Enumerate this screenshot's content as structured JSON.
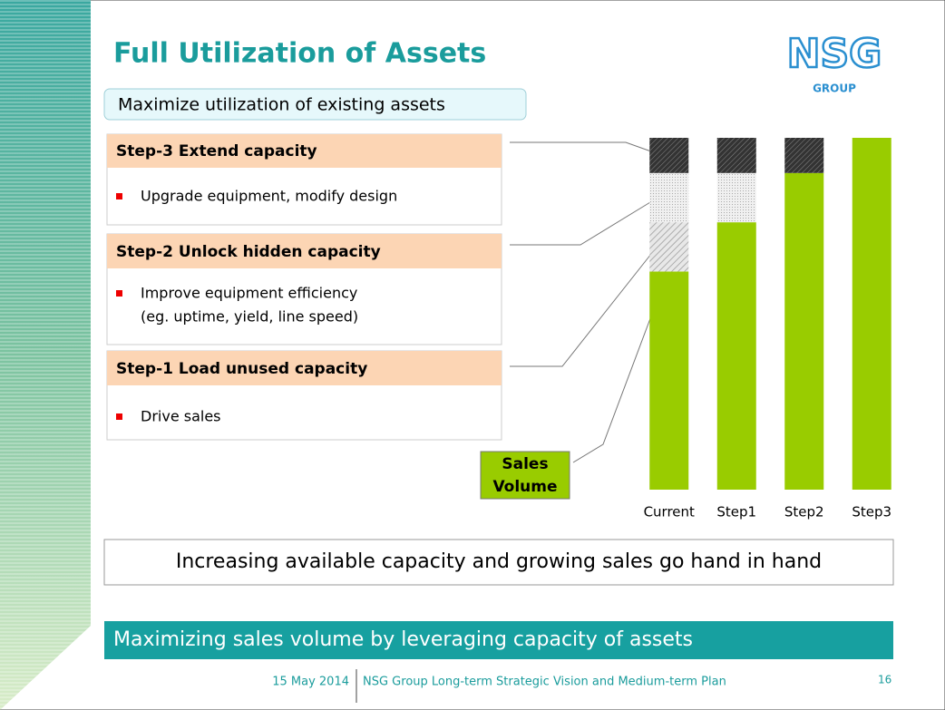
{
  "slide": {
    "title": "Full Utilization of Assets",
    "subtitle": "Maximize utilization of existing assets",
    "logo": {
      "name": "NSG",
      "sub": "GROUP"
    },
    "steps": [
      {
        "header": "Step-3  Extend capacity",
        "bullet": [
          "Upgrade equipment, modify design"
        ]
      },
      {
        "header": "Step-2  Unlock hidden capacity",
        "bullet": [
          "Improve equipment efficiency",
          "(eg. uptime, yield, line speed)"
        ]
      },
      {
        "header": "Step-1  Load unused capacity",
        "bullet": [
          "Drive sales"
        ]
      }
    ],
    "sales_label": [
      "Sales",
      "Volume"
    ],
    "callout": "Increasing available capacity and growing sales go hand in hand",
    "banner": "Maximizing sales volume by leveraging capacity of assets",
    "footer": {
      "date": "15 May 2014",
      "text": "NSG Group Long-term Strategic Vision and Medium-term Plan",
      "page": "16"
    }
  },
  "chart_data": {
    "type": "bar",
    "stacked": true,
    "categories": [
      "Current",
      "Step1",
      "Step2",
      "Step3"
    ],
    "ylim": [
      0,
      100
    ],
    "series": [
      {
        "color": "#99cc00",
        "values": [
          62,
          76,
          90,
          100
        ]
      },
      {
        "color": "hatch-light",
        "values": [
          14,
          null,
          null,
          null
        ]
      },
      {
        "color": "dots",
        "values": [
          14,
          14,
          null,
          null
        ]
      },
      {
        "color": "hatch-dark",
        "values": [
          10,
          10,
          10,
          null
        ]
      }
    ]
  }
}
